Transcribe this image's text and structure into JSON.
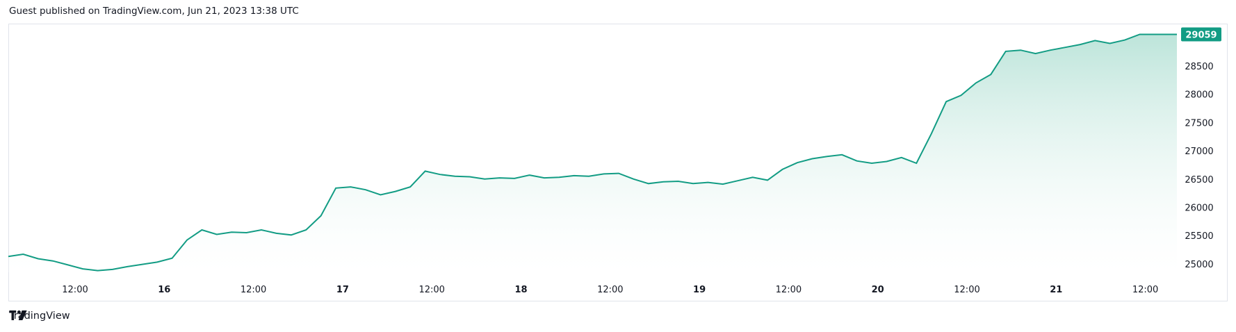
{
  "header": {
    "published": "Guest published on TradingView.com, Jun 21, 2023 13:38 UTC"
  },
  "footer": {
    "brand": "TradingView",
    "logo_icon": "tradingview-logo-icon"
  },
  "colors": {
    "line": "#129c84",
    "fill_top": "#b9e3d8",
    "fill_bottom": "#ffffff",
    "price_badge_bg": "#129c84",
    "price_badge_text": "#ffffff",
    "border": "#e0e3eb"
  },
  "chart_data": {
    "type": "area",
    "x_unit": "time (Jun 15 – Jun 21, 2023, UTC)",
    "ylim": [
      24850,
      29250
    ],
    "y_ticks": [
      25000,
      25500,
      26000,
      26500,
      27000,
      27500,
      28000,
      28500
    ],
    "x_ticks": [
      {
        "label": "12:00",
        "bold": false
      },
      {
        "label": "16",
        "bold": true
      },
      {
        "label": "12:00",
        "bold": false
      },
      {
        "label": "17",
        "bold": true
      },
      {
        "label": "12:00",
        "bold": false
      },
      {
        "label": "18",
        "bold": true
      },
      {
        "label": "12:00",
        "bold": false
      },
      {
        "label": "19",
        "bold": true
      },
      {
        "label": "12:00",
        "bold": false
      },
      {
        "label": "20",
        "bold": true
      },
      {
        "label": "12:00",
        "bold": false
      },
      {
        "label": "21",
        "bold": true
      },
      {
        "label": "12:00",
        "bold": false
      }
    ],
    "last_price": "29059",
    "series": [
      {
        "x_hours": [
          0,
          2,
          4,
          6,
          8,
          10,
          12,
          14,
          16,
          18,
          20,
          22,
          24,
          26,
          28,
          30,
          32,
          34,
          36,
          38,
          40,
          42,
          44,
          46,
          48,
          50,
          52,
          54,
          56,
          58,
          60,
          62,
          64,
          66,
          68,
          70,
          72,
          74,
          76,
          78,
          80,
          82,
          84,
          86,
          88,
          90,
          92,
          94,
          96,
          98,
          100,
          102,
          104,
          106,
          108,
          110,
          112,
          114,
          116,
          118,
          120,
          122,
          124,
          126,
          128,
          130,
          132,
          134,
          136,
          138,
          140,
          142,
          144,
          146,
          148,
          150,
          152,
          154,
          156,
          157
        ],
        "values": [
          25130,
          25170,
          25090,
          25050,
          24980,
          24910,
          24880,
          24900,
          24950,
          24990,
          25030,
          25100,
          25420,
          25600,
          25520,
          25560,
          25550,
          25600,
          25540,
          25510,
          25600,
          25850,
          26340,
          26360,
          26310,
          26220,
          26280,
          26360,
          26640,
          26580,
          26550,
          26540,
          26500,
          26520,
          26510,
          26570,
          26520,
          26530,
          26560,
          26550,
          26590,
          26600,
          26500,
          26420,
          26450,
          26460,
          26420,
          26440,
          26410,
          26470,
          26530,
          26480,
          26670,
          26790,
          26860,
          26900,
          26930,
          26820,
          26780,
          26810,
          26880,
          26780,
          27300,
          27870,
          27980,
          28200,
          28350,
          28760,
          28780,
          28720,
          28780,
          28830,
          28880,
          28950,
          28900,
          28960,
          29060,
          29059,
          29059,
          29059
        ]
      }
    ]
  }
}
